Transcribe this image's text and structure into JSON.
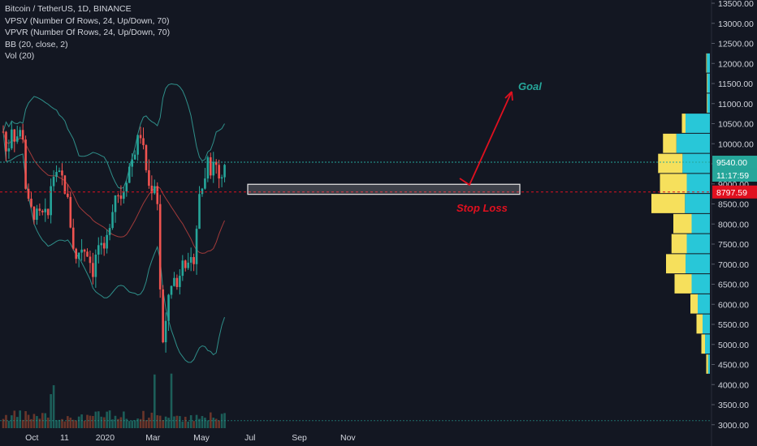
{
  "legend": {
    "symbol": "Bitcoin / TetherUS, 1D, BINANCE",
    "vpsv": "VPSV (Number Of Rows, 24, Up/Down, 70)",
    "vpvr": "VPVR (Number Of Rows, 24, Up/Down, 70)",
    "bb": "BB (20, close, 2)",
    "vol": "Vol (20)"
  },
  "colors": {
    "background": "#131722",
    "up": "#26a69a",
    "down": "#ef5350",
    "bb_band": "#2f8f8a",
    "bb_basis": "#a03a3a",
    "vp_up": "#28c7d8",
    "vp_down": "#f6e05c",
    "annotation_goal": "#26a69a",
    "annotation_red": "#e0101f",
    "grid": "#1e2230",
    "price_label_up": "#26a69a",
    "price_label_current": "#e0101f"
  },
  "price_labels": {
    "current": "9540.00",
    "countdown": "11:17:59",
    "level": "8797.59"
  },
  "annotations": {
    "goal": "Goal",
    "stop_loss": "Stop Loss"
  },
  "chart_data": {
    "type": "candlestick",
    "title": "Bitcoin / TetherUS, 1D, BINANCE",
    "y_ticks": [
      "13500.00",
      "13000.00",
      "12500.00",
      "12000.00",
      "11500.00",
      "11000.00",
      "10500.00",
      "10000.00",
      "9500.00",
      "9000.00",
      "8500.00",
      "8000.00",
      "7500.00",
      "7000.00",
      "6500.00",
      "6000.00",
      "5500.00",
      "5000.00",
      "4500.00",
      "4000.00",
      "3500.00",
      "3000.00"
    ],
    "x_ticks": [
      "Oct",
      "11",
      "2020",
      "Mar",
      "May",
      "Jul",
      "Sep",
      "Nov"
    ],
    "ylim": [
      3000,
      13500
    ],
    "grid": false,
    "close_path": [
      [
        "2019-08-26",
        10300
      ],
      [
        "2019-08-31",
        9600
      ],
      [
        "2019-09-05",
        10500
      ],
      [
        "2019-09-10",
        10100
      ],
      [
        "2019-09-15",
        10300
      ],
      [
        "2019-09-20",
        10200
      ],
      [
        "2019-09-24",
        8600
      ],
      [
        "2019-10-01",
        8300
      ],
      [
        "2019-10-08",
        8200
      ],
      [
        "2019-10-15",
        8200
      ],
      [
        "2019-10-22",
        8200
      ],
      [
        "2019-10-26",
        9300
      ],
      [
        "2019-10-31",
        9150
      ],
      [
        "2019-11-07",
        9200
      ],
      [
        "2019-11-14",
        8700
      ],
      [
        "2019-11-21",
        7600
      ],
      [
        "2019-11-25",
        7050
      ],
      [
        "2019-12-01",
        7450
      ],
      [
        "2019-12-10",
        7300
      ],
      [
        "2019-12-17",
        6800
      ],
      [
        "2019-12-23",
        7500
      ],
      [
        "2019-12-31",
        7200
      ],
      [
        "2020-01-07",
        8100
      ],
      [
        "2020-01-14",
        8800
      ],
      [
        "2020-01-21",
        8700
      ],
      [
        "2020-01-31",
        9400
      ],
      [
        "2020-02-07",
        9800
      ],
      [
        "2020-02-14",
        10300
      ],
      [
        "2020-02-19",
        9700
      ],
      [
        "2020-02-26",
        8800
      ],
      [
        "2020-03-05",
        9100
      ],
      [
        "2020-03-08",
        8100
      ],
      [
        "2020-03-12",
        4950
      ],
      [
        "2020-03-16",
        5100
      ],
      [
        "2020-03-20",
        6200
      ],
      [
        "2020-03-26",
        6700
      ],
      [
        "2020-04-01",
        6400
      ],
      [
        "2020-04-07",
        7300
      ],
      [
        "2020-04-14",
        6850
      ],
      [
        "2020-04-21",
        7100
      ],
      [
        "2020-04-29",
        8800
      ],
      [
        "2020-05-06",
        9150
      ],
      [
        "2020-05-09",
        9800
      ],
      [
        "2020-05-13",
        9300
      ],
      [
        "2020-05-18",
        9700
      ],
      [
        "2020-05-22",
        9150
      ],
      [
        "2020-05-27",
        9200
      ],
      [
        "2020-06-01",
        9500
      ],
      [
        "2020-06-02",
        9540
      ]
    ],
    "volume_profile": [
      {
        "price": 12000,
        "up": 5,
        "down": 1
      },
      {
        "price": 11500,
        "up": 4,
        "down": 1
      },
      {
        "price": 11000,
        "up": 4,
        "down": 1
      },
      {
        "price": 10500,
        "up": 40,
        "down": 6
      },
      {
        "price": 10000,
        "up": 55,
        "down": 22
      },
      {
        "price": 9500,
        "up": 45,
        "down": 40
      },
      {
        "price": 9000,
        "up": 38,
        "down": 44
      },
      {
        "price": 8500,
        "up": 41,
        "down": 55
      },
      {
        "price": 8000,
        "up": 30,
        "down": 30
      },
      {
        "price": 7500,
        "up": 38,
        "down": 25
      },
      {
        "price": 7000,
        "up": 40,
        "down": 32
      },
      {
        "price": 6500,
        "up": 30,
        "down": 28
      },
      {
        "price": 6000,
        "up": 20,
        "down": 12
      },
      {
        "price": 5500,
        "up": 12,
        "down": 10
      },
      {
        "price": 5000,
        "up": 8,
        "down": 6
      },
      {
        "price": 4500,
        "up": 3,
        "down": 3
      }
    ]
  }
}
